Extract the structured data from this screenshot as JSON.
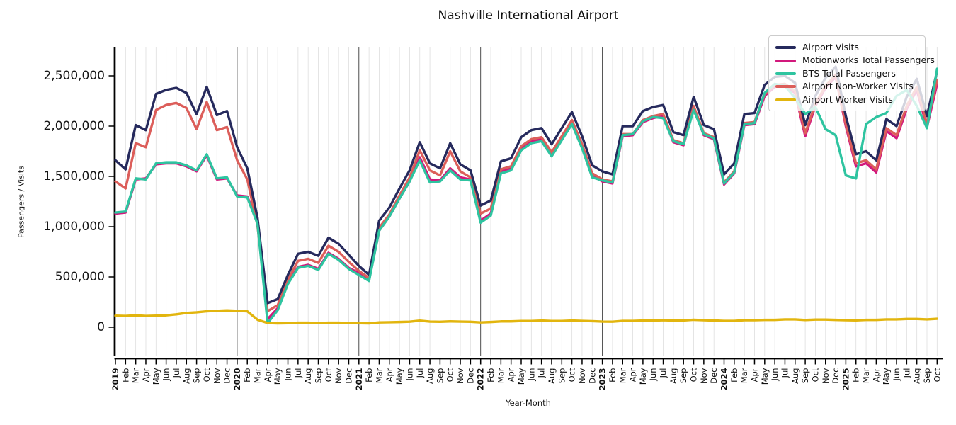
{
  "chart_data": {
    "type": "line",
    "title": "Nashville International Airport",
    "xlabel": "Year-Month",
    "ylabel": "Passengers / Visits",
    "x_range": "2019-01 to 2025-10",
    "grid": "vertical gridline per month; darker vertical line at each January (year start)",
    "legend_position": "upper right",
    "ylim": [
      0,
      2780000
    ],
    "yticks": [
      {
        "value": 0,
        "label": "0"
      },
      {
        "value": 500000,
        "label": "500,000"
      },
      {
        "value": 1000000,
        "label": "1,000,000"
      },
      {
        "value": 1500000,
        "label": "1,500,000"
      },
      {
        "value": 2000000,
        "label": "2,000,000"
      },
      {
        "value": 2500000,
        "label": "2,500,000"
      }
    ],
    "x_tick_labels": [
      "2019",
      "Feb",
      "Mar",
      "Apr",
      "May",
      "Jun",
      "Jul",
      "Aug",
      "Sep",
      "Oct",
      "Nov",
      "Dec",
      "2020",
      "Feb",
      "Mar",
      "Apr",
      "May",
      "Jun",
      "Jul",
      "Aug",
      "Sep",
      "Oct",
      "Nov",
      "Dec",
      "2021",
      "Feb",
      "Mar",
      "Apr",
      "May",
      "Jun",
      "Jul",
      "Aug",
      "Sep",
      "Oct",
      "Nov",
      "Dec",
      "2022",
      "Feb",
      "Mar",
      "Apr",
      "May",
      "Jun",
      "Jul",
      "Aug",
      "Sep",
      "Oct",
      "Nov",
      "Dec",
      "2023",
      "Feb",
      "Mar",
      "Apr",
      "May",
      "Jun",
      "Jul",
      "Aug",
      "Sep",
      "Oct",
      "Nov",
      "Dec",
      "2024",
      "Feb",
      "Mar",
      "Apr",
      "May",
      "Jun",
      "Jul",
      "Aug",
      "Sep",
      "Oct",
      "Nov",
      "Dec",
      "2025",
      "Feb",
      "Mar",
      "Apr",
      "May",
      "Jun",
      "Jul",
      "Aug",
      "Sep",
      "Oct"
    ],
    "series": [
      {
        "name": "Airport Visits",
        "color": "#262a5d",
        "values": [
          1660000,
          1570000,
          2010000,
          1960000,
          2320000,
          2360000,
          2380000,
          2330000,
          2120000,
          2390000,
          2110000,
          2150000,
          1790000,
          1580000,
          1090000,
          240000,
          280000,
          520000,
          730000,
          750000,
          710000,
          890000,
          830000,
          720000,
          610000,
          520000,
          1060000,
          1190000,
          1380000,
          1560000,
          1840000,
          1630000,
          1580000,
          1830000,
          1620000,
          1560000,
          1210000,
          1260000,
          1650000,
          1680000,
          1890000,
          1960000,
          1980000,
          1820000,
          1980000,
          2140000,
          1900000,
          1610000,
          1550000,
          1520000,
          2000000,
          2000000,
          2150000,
          2190000,
          2210000,
          1940000,
          1910000,
          2290000,
          2010000,
          1970000,
          1520000,
          1630000,
          2120000,
          2130000,
          2410000,
          2490000,
          2500000,
          2430000,
          2010000,
          2300000,
          2480000,
          2590000,
          2100000,
          1720000,
          1750000,
          1660000,
          2070000,
          2000000,
          2290000,
          2470000,
          2100000,
          2550000
        ]
      },
      {
        "name": "Motionworks Total Passengers",
        "color": "#d2187c",
        "values": [
          1130000,
          1140000,
          1470000,
          1480000,
          1620000,
          1630000,
          1630000,
          1600000,
          1550000,
          1710000,
          1470000,
          1480000,
          1310000,
          1300000,
          1050000,
          80000,
          190000,
          440000,
          600000,
          620000,
          580000,
          740000,
          680000,
          590000,
          540000,
          470000,
          960000,
          1100000,
          1280000,
          1450000,
          1690000,
          1470000,
          1460000,
          1580000,
          1490000,
          1470000,
          1060000,
          1130000,
          1550000,
          1580000,
          1780000,
          1850000,
          1870000,
          1720000,
          1880000,
          2040000,
          1800000,
          1510000,
          1450000,
          1430000,
          1900000,
          1910000,
          2040000,
          2080000,
          2100000,
          1840000,
          1810000,
          2180000,
          1910000,
          1870000,
          1420000,
          1530000,
          2010000,
          2020000,
          2300000,
          2390000,
          2400000,
          2330000,
          1900000,
          2200000,
          2380000,
          2490000,
          2000000,
          1600000,
          1630000,
          1540000,
          1950000,
          1880000,
          2170000,
          2360000,
          1990000,
          2420000
        ]
      },
      {
        "name": "BTS Total Passengers",
        "color": "#2ec4a0",
        "values": [
          1140000,
          1150000,
          1480000,
          1470000,
          1630000,
          1640000,
          1640000,
          1610000,
          1560000,
          1720000,
          1480000,
          1490000,
          1300000,
          1290000,
          1030000,
          40000,
          170000,
          430000,
          590000,
          610000,
          570000,
          730000,
          670000,
          580000,
          520000,
          460000,
          960000,
          1100000,
          1280000,
          1450000,
          1660000,
          1440000,
          1450000,
          1560000,
          1470000,
          1460000,
          1040000,
          1110000,
          1530000,
          1560000,
          1760000,
          1830000,
          1850000,
          1700000,
          1860000,
          2020000,
          1780000,
          1490000,
          1460000,
          1440000,
          1910000,
          1920000,
          2050000,
          2090000,
          2080000,
          1850000,
          1820000,
          2160000,
          1920000,
          1880000,
          1430000,
          1540000,
          2020000,
          2030000,
          2330000,
          2420000,
          2400000,
          2280000,
          2120000,
          2190000,
          1970000,
          1910000,
          1510000,
          1480000,
          2020000,
          2090000,
          2130000,
          2300000,
          2360000,
          2200000,
          1980000,
          2570000
        ]
      },
      {
        "name": "Airport Non-Worker Visits",
        "color": "#dc5e5a",
        "values": [
          1450000,
          1380000,
          1830000,
          1790000,
          2160000,
          2210000,
          2230000,
          2180000,
          1970000,
          2240000,
          1960000,
          1990000,
          1660000,
          1470000,
          1010000,
          160000,
          220000,
          470000,
          660000,
          680000,
          640000,
          810000,
          750000,
          650000,
          560000,
          490000,
          990000,
          1120000,
          1310000,
          1490000,
          1760000,
          1560000,
          1510000,
          1750000,
          1550000,
          1490000,
          1130000,
          1180000,
          1570000,
          1600000,
          1800000,
          1870000,
          1890000,
          1740000,
          1900000,
          2060000,
          1820000,
          1530000,
          1470000,
          1450000,
          1920000,
          1920000,
          2060000,
          2100000,
          2120000,
          1860000,
          1830000,
          2200000,
          1930000,
          1890000,
          1440000,
          1550000,
          2030000,
          2040000,
          2320000,
          2410000,
          2420000,
          2350000,
          1930000,
          2220000,
          2400000,
          2510000,
          2020000,
          1630000,
          1660000,
          1570000,
          1980000,
          1910000,
          2200000,
          2390000,
          2020000,
          2460000
        ]
      },
      {
        "name": "Airport Worker Visits",
        "color": "#e2b50e",
        "values": [
          115000,
          112000,
          118000,
          112000,
          115000,
          118000,
          128000,
          142000,
          148000,
          158000,
          163000,
          168000,
          163000,
          158000,
          75000,
          42000,
          38000,
          40000,
          45000,
          45000,
          42000,
          45000,
          45000,
          42000,
          40000,
          38000,
          48000,
          50000,
          52000,
          55000,
          66000,
          56000,
          54000,
          58000,
          56000,
          54000,
          48000,
          52000,
          58000,
          58000,
          62000,
          62000,
          66000,
          62000,
          62000,
          66000,
          63000,
          60000,
          56000,
          55000,
          63000,
          63000,
          66000,
          66000,
          70000,
          67000,
          67000,
          74000,
          70000,
          67000,
          63000,
          63000,
          70000,
          70000,
          73000,
          73000,
          78000,
          78000,
          72000,
          76000,
          76000,
          73000,
          70000,
          68000,
          73000,
          73000,
          78000,
          78000,
          82000,
          82000,
          78000,
          84000
        ]
      }
    ]
  }
}
